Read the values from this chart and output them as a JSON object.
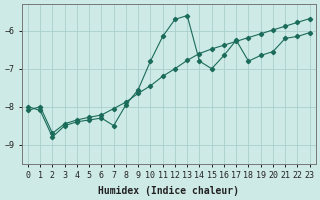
{
  "xlabel": "Humidex (Indice chaleur)",
  "x_data": [
    0,
    1,
    2,
    3,
    4,
    5,
    6,
    7,
    8,
    9,
    10,
    11,
    12,
    13,
    14,
    15,
    16,
    17,
    18,
    19,
    20,
    21,
    22,
    23
  ],
  "y_line1": [
    -8.0,
    -8.1,
    -8.8,
    -8.5,
    -8.4,
    -8.35,
    -8.3,
    -8.5,
    -7.95,
    -7.55,
    -6.8,
    -6.15,
    -5.7,
    -5.6,
    -6.8,
    -7.0,
    -6.65,
    -6.25,
    -6.8,
    -6.65,
    -6.55,
    -6.2,
    -6.15,
    -6.05
  ],
  "y_line2": [
    -8.1,
    -8.0,
    -8.7,
    -8.45,
    -8.35,
    -8.28,
    -8.22,
    -8.05,
    -7.88,
    -7.65,
    -7.45,
    -7.2,
    -7.0,
    -6.78,
    -6.6,
    -6.48,
    -6.38,
    -6.28,
    -6.18,
    -6.08,
    -5.98,
    -5.88,
    -5.78,
    -5.68
  ],
  "line_color": "#1a6b5a",
  "bg_color": "#ceeae6",
  "grid_color": "#aacfcc",
  "ylim": [
    -9.5,
    -5.3
  ],
  "xlim": [
    -0.5,
    23.5
  ],
  "yticks": [
    -9,
    -8,
    -7,
    -6
  ],
  "xticks": [
    0,
    1,
    2,
    3,
    4,
    5,
    6,
    7,
    8,
    9,
    10,
    11,
    12,
    13,
    14,
    15,
    16,
    17,
    18,
    19,
    20,
    21,
    22,
    23
  ],
  "tick_fontsize": 6,
  "xlabel_fontsize": 7
}
